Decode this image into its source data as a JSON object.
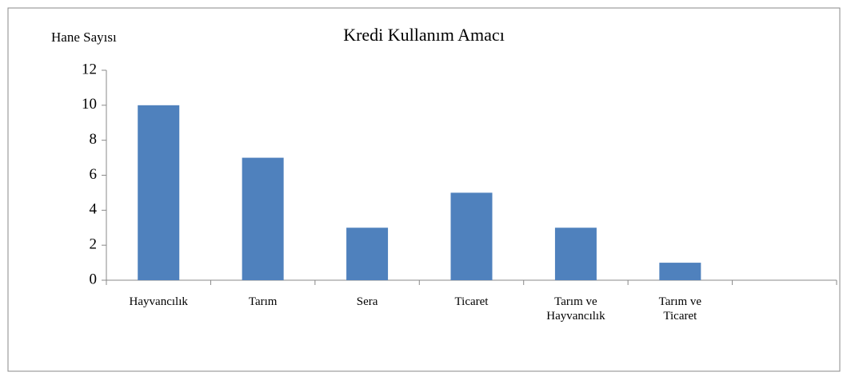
{
  "chart_data": {
    "type": "bar",
    "title": "Kredi Kullanım Amacı",
    "y_label": "Hane Sayısı",
    "categories": [
      "Hayvancılık",
      "Tarım",
      "Sera",
      "Ticaret",
      "Tarım ve Hayvancılık",
      "Tarım ve Ticaret",
      null
    ],
    "values": [
      10,
      7,
      3,
      5,
      3,
      1,
      null
    ],
    "color": "#4f81bd",
    "ylim": [
      0,
      12
    ],
    "yticks": [
      0,
      2,
      4,
      6,
      8,
      10,
      12
    ],
    "grid": false
  }
}
